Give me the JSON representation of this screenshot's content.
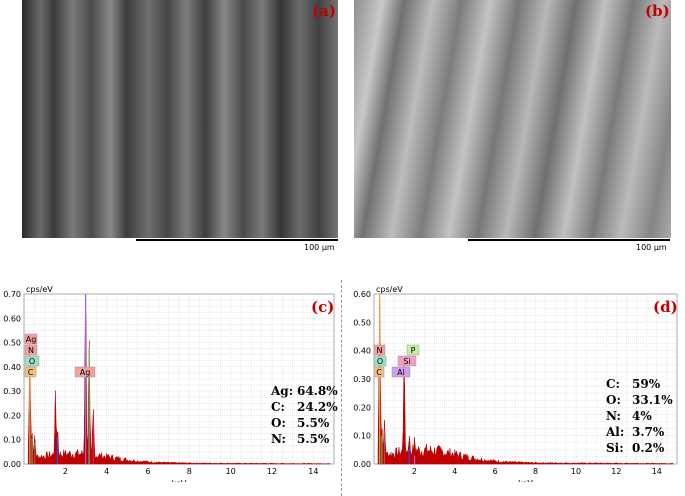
{
  "panels": {
    "a": {
      "label": "(a)",
      "scale": "100 µm"
    },
    "b": {
      "label": "(b)",
      "scale": "100 µm"
    }
  },
  "chart_data": [
    {
      "type": "area",
      "panel_label": "(c)",
      "ylabel": "cps/eV",
      "xlabel": "keV",
      "xlim": [
        0,
        15
      ],
      "ylim": [
        0,
        0.8
      ],
      "yticks": [
        "0.00",
        "0.10",
        "0.20",
        "0.30",
        "0.40",
        "0.50",
        "0.60",
        "0.70"
      ],
      "xticks": [
        "2",
        "4",
        "6",
        "8",
        "10",
        "12",
        "14"
      ],
      "peak_tags": [
        "Ag",
        "N",
        "O",
        "C",
        "Ag"
      ],
      "composition": [
        {
          "el": "Ag:",
          "pct": "64.8%"
        },
        {
          "el": "C:",
          "pct": "24.2%"
        },
        {
          "el": "O:",
          "pct": "5.5%"
        },
        {
          "el": "N:",
          "pct": "5.5%"
        }
      ],
      "peaks": [
        {
          "x": 0.28,
          "y": 0.55
        },
        {
          "x": 0.39,
          "y": 0.12
        },
        {
          "x": 0.52,
          "y": 0.1
        },
        {
          "x": 1.52,
          "y": 0.28
        },
        {
          "x": 1.62,
          "y": 0.13
        },
        {
          "x": 2.98,
          "y": 0.8
        },
        {
          "x": 3.15,
          "y": 0.55
        },
        {
          "x": 3.35,
          "y": 0.22
        }
      ]
    },
    {
      "type": "area",
      "panel_label": "(d)",
      "ylabel": "cps/eV",
      "xlabel": "keV",
      "xlim": [
        0,
        15
      ],
      "ylim": [
        0,
        0.6
      ],
      "yticks": [
        "0.00",
        "0.10",
        "0.20",
        "0.30",
        "0.40",
        "0.50",
        "0.60"
      ],
      "xticks": [
        "2",
        "4",
        "6",
        "8",
        "10",
        "12",
        "14"
      ],
      "peak_tags": [
        "N",
        "P",
        "O",
        "Si",
        "C",
        "Al"
      ],
      "composition": [
        {
          "el": "C:",
          "pct": "59%"
        },
        {
          "el": "O:",
          "pct": "33.1%"
        },
        {
          "el": "N:",
          "pct": "4%"
        },
        {
          "el": "Al:",
          "pct": "3.7%"
        },
        {
          "el": "Si:",
          "pct": "0.2%"
        }
      ],
      "peaks": [
        {
          "x": 0.28,
          "y": 0.6
        },
        {
          "x": 0.39,
          "y": 0.1
        },
        {
          "x": 0.52,
          "y": 0.12
        },
        {
          "x": 1.49,
          "y": 0.34
        },
        {
          "x": 1.74,
          "y": 0.05
        },
        {
          "x": 2.01,
          "y": 0.03
        }
      ]
    }
  ]
}
